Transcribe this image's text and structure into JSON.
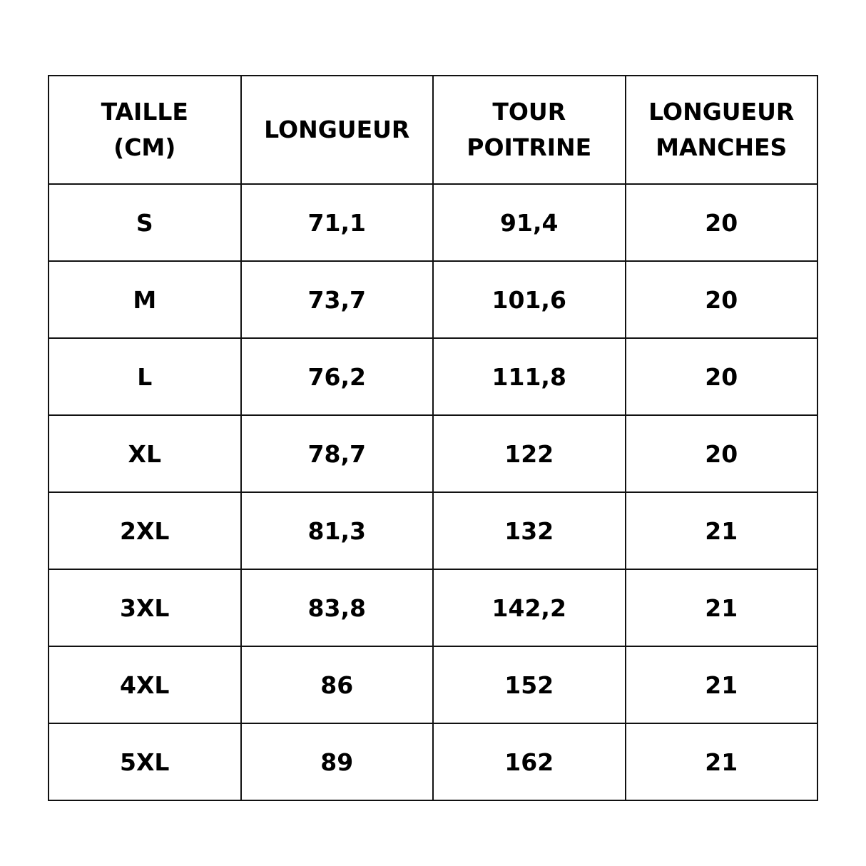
{
  "table": {
    "header": [
      [
        "TAILLE",
        "(CM)"
      ],
      [
        "LONGUEUR"
      ],
      [
        "TOUR",
        "POITRINE"
      ],
      [
        "LONGUEUR",
        "MANCHES"
      ]
    ],
    "rows": [
      [
        "S",
        "71,1",
        "91,4",
        "20"
      ],
      [
        "M",
        "73,7",
        "101,6",
        "20"
      ],
      [
        "L",
        "76,2",
        "111,8",
        "20"
      ],
      [
        "XL",
        "78,7",
        "122",
        "20"
      ],
      [
        "2XL",
        "81,3",
        "132",
        "21"
      ],
      [
        "3XL",
        "83,8",
        "142,2",
        "21"
      ],
      [
        "4XL",
        "86",
        "152",
        "21"
      ],
      [
        "5XL",
        "89",
        "162",
        "21"
      ]
    ]
  }
}
